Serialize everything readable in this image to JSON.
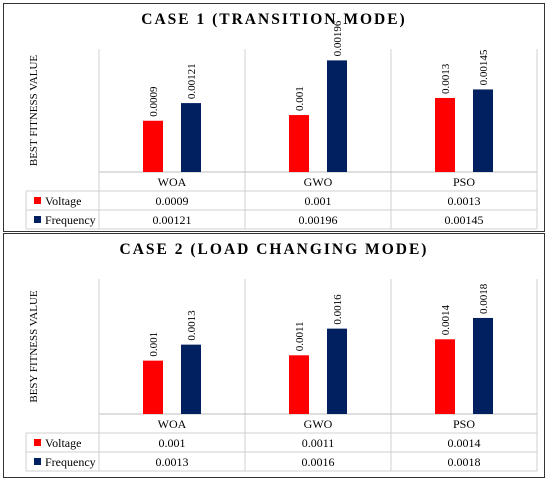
{
  "colors": {
    "voltage": "#ff0000",
    "frequency": "#002060"
  },
  "chart_data": [
    {
      "type": "bar",
      "title": "CASE 1 (TRANSITION MODE)",
      "ylabel": "BEST FITNESS VALUE",
      "categories": [
        "WOA",
        "GWO",
        "PSO"
      ],
      "series": [
        {
          "name": "Voltage",
          "values": [
            0.0009,
            0.001,
            0.0013
          ],
          "labels": [
            "0.0009",
            "0.001",
            "0.0013"
          ]
        },
        {
          "name": "Frequency",
          "values": [
            0.00121,
            0.00196,
            0.00145
          ],
          "labels": [
            "0.00121",
            "0.00196",
            "0.00145"
          ]
        }
      ],
      "ylim": [
        0,
        0.00216
      ],
      "data_table": true,
      "legend": "data table"
    },
    {
      "type": "bar",
      "title": "CASE 2 (LOAD CHANGING MODE)",
      "ylabel": "BESY FITNESS VALUE",
      "categories": [
        "WOA",
        "GWO",
        "PSO"
      ],
      "series": [
        {
          "name": "Voltage",
          "values": [
            0.001,
            0.0011,
            0.0014
          ],
          "labels": [
            "0.001",
            "0.0011",
            "0.0014"
          ]
        },
        {
          "name": "Frequency",
          "values": [
            0.0013,
            0.0016,
            0.0018
          ],
          "labels": [
            "0.0013",
            "0.0016",
            "0.0018"
          ]
        }
      ],
      "ylim": [
        0,
        0.00253
      ],
      "data_table": true,
      "legend": "data table"
    }
  ]
}
